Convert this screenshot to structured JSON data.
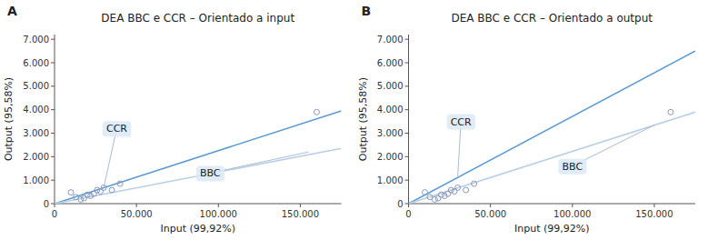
{
  "chart_data": [
    {
      "type": "scatter",
      "panel_label": "A",
      "title": "DEA BBC e CCR – Orientado a input",
      "x_label": "Input (99,92%)",
      "y_label": "Output (95,58%)",
      "xlim": [
        0,
        175000
      ],
      "ylim": [
        0,
        7200
      ],
      "xticks": [
        0,
        {
          "value": 50000,
          "label": "50.000"
        },
        {
          "value": 100000,
          "label": "100.000"
        },
        {
          "value": 150000,
          "label": "150.000"
        }
      ],
      "yticks": [
        0,
        {
          "value": 1000,
          "label": "1.000"
        },
        {
          "value": 2000,
          "label": "2.000"
        },
        {
          "value": 3000,
          "label": "3.000"
        },
        {
          "value": 4000,
          "label": "4.000"
        },
        {
          "value": 5000,
          "label": "5.000"
        },
        {
          "value": 6000,
          "label": "6.000"
        },
        {
          "value": 7000,
          "label": "7.000"
        }
      ],
      "grid": false,
      "series": [
        {
          "type": "scatter",
          "color": "#8899bb",
          "marker": "circle",
          "x": [
            10000,
            13000,
            16000,
            18000,
            20000,
            22000,
            24000,
            26000,
            28000,
            30000,
            35000,
            40000,
            160000
          ],
          "values": [
            480,
            280,
            180,
            230,
            380,
            330,
            420,
            580,
            520,
            680,
            580,
            850,
            3900
          ]
        },
        {
          "type": "line",
          "color": "#5b9bd5",
          "x": [
            0,
            175000
          ],
          "values": [
            0,
            3950
          ]
        },
        {
          "type": "line",
          "color": "#b8cfe4",
          "x": [
            0,
            175000
          ],
          "values": [
            0,
            2350
          ]
        }
      ],
      "annotations": [
        {
          "text": "CCR",
          "x": 30000,
          "y": 680,
          "text_x": 38000,
          "text_y": 3200
        },
        {
          "text": "BBC",
          "x": 155000,
          "y": 2200,
          "text_x": 95000,
          "text_y": 1300
        }
      ]
    },
    {
      "type": "scatter",
      "panel_label": "B",
      "title": "DEA BBC e CCR – Orientado a output",
      "x_label": "Input (99,92%)",
      "y_label": "Output (95,58%)",
      "xlim": [
        0,
        175000
      ],
      "ylim": [
        0,
        7200
      ],
      "xticks": [
        0,
        {
          "value": 50000,
          "label": "50.000"
        },
        {
          "value": 100000,
          "label": "100.000"
        },
        {
          "value": 150000,
          "label": "150.000"
        }
      ],
      "yticks": [
        0,
        {
          "value": 1000,
          "label": "1.000"
        },
        {
          "value": 2000,
          "label": "2.000"
        },
        {
          "value": 3000,
          "label": "3.000"
        },
        {
          "value": 4000,
          "label": "4.000"
        },
        {
          "value": 5000,
          "label": "5.000"
        },
        {
          "value": 6000,
          "label": "6.000"
        },
        {
          "value": 7000,
          "label": "7.000"
        }
      ],
      "grid": false,
      "series": [
        {
          "type": "scatter",
          "color": "#8899bb",
          "marker": "circle",
          "x": [
            10000,
            13000,
            16000,
            18000,
            20000,
            22000,
            24000,
            26000,
            28000,
            30000,
            35000,
            40000,
            160000
          ],
          "values": [
            480,
            280,
            180,
            230,
            380,
            330,
            420,
            580,
            520,
            680,
            580,
            850,
            3900
          ]
        },
        {
          "type": "line",
          "color": "#5b9bd5",
          "x": [
            0,
            175000
          ],
          "values": [
            0,
            6500
          ]
        },
        {
          "type": "line",
          "color": "#b8cfe4",
          "x": [
            0,
            175000
          ],
          "values": [
            0,
            3900
          ]
        }
      ],
      "annotations": [
        {
          "text": "CCR",
          "x": 30000,
          "y": 1114,
          "text_x": 32000,
          "text_y": 3500
        },
        {
          "text": "BBC",
          "x": 150000,
          "y": 3343,
          "text_x": 100000,
          "text_y": 1600
        }
      ]
    }
  ]
}
